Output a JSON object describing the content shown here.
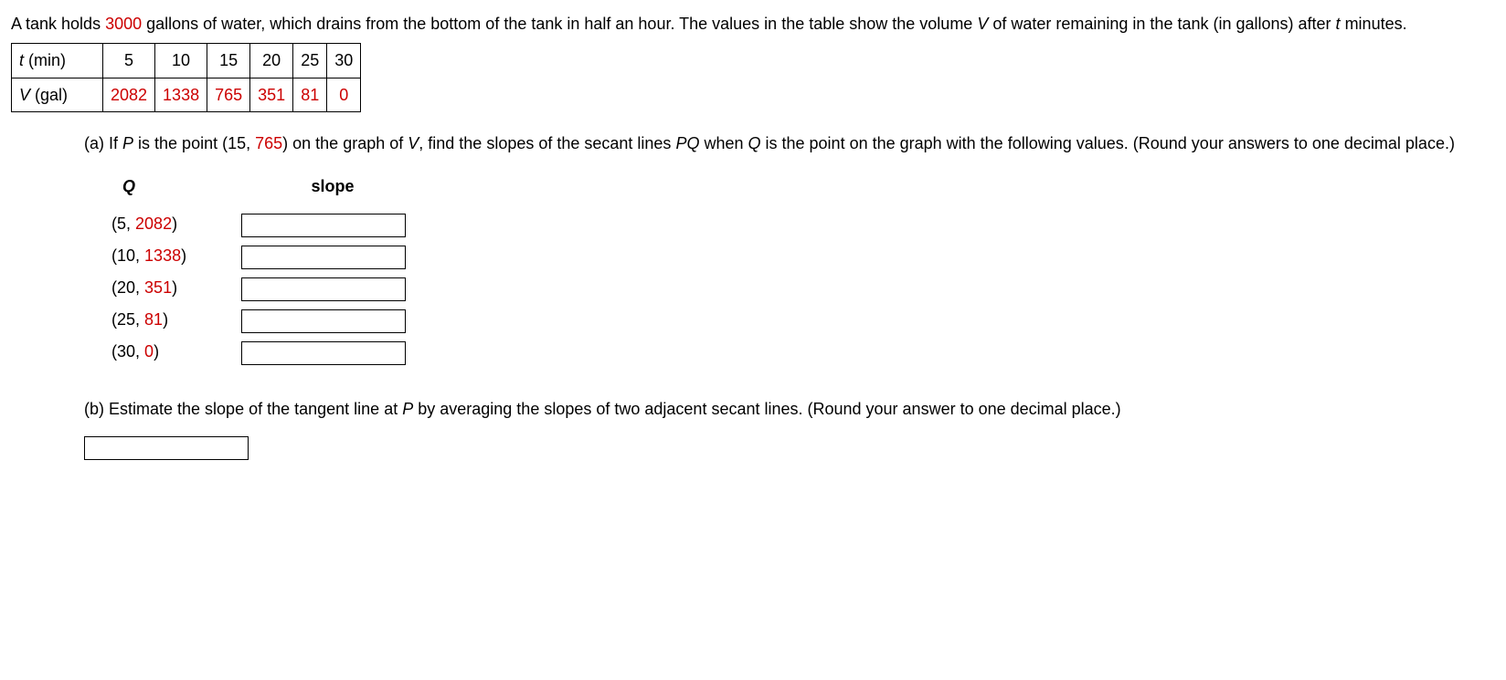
{
  "intro": {
    "prefix": "A tank holds ",
    "gallons": "3000",
    "mid": " gallons of water, which drains from the bottom of the tank in half an hour. The values in the table show the volume ",
    "V": "V",
    "after": " of water remaining in the tank (in gallons) after ",
    "t": "t",
    "end": " minutes."
  },
  "dataTable": {
    "row1": {
      "label_t": "t",
      "label_unit": " (min)",
      "c1": "5",
      "c2": "10",
      "c3": "15",
      "c4": "20",
      "c5": "25",
      "c6": "30"
    },
    "row2": {
      "label_V": "V",
      "label_unit": " (gal)",
      "c1": "2082",
      "c2": "1338",
      "c3": "765",
      "c4": "351",
      "c5": "81",
      "c6": "0"
    }
  },
  "partA": {
    "prefix": "(a) If ",
    "P": "P",
    "mid1": " is the point (15, ",
    "pval": "765",
    "mid2": ") on the graph of ",
    "V": "V",
    "mid3": ", find the slopes of the secant lines ",
    "PQ": "PQ",
    "mid4": " when ",
    "Q": "Q",
    "end": " is the point on the graph with the following values. (Round your answers to one decimal place.)",
    "headers": {
      "Q": "Q",
      "slope": "slope"
    },
    "rows": [
      {
        "x": "5",
        "y": "2082"
      },
      {
        "x": "10",
        "y": "1338"
      },
      {
        "x": "20",
        "y": "351"
      },
      {
        "x": "25",
        "y": "81"
      },
      {
        "x": "30",
        "y": "0"
      }
    ]
  },
  "partB": {
    "prefix": "(b) Estimate the slope of the tangent line at ",
    "P": "P",
    "end": " by averaging the slopes of two adjacent secant lines. (Round your answer to one decimal place.)"
  }
}
